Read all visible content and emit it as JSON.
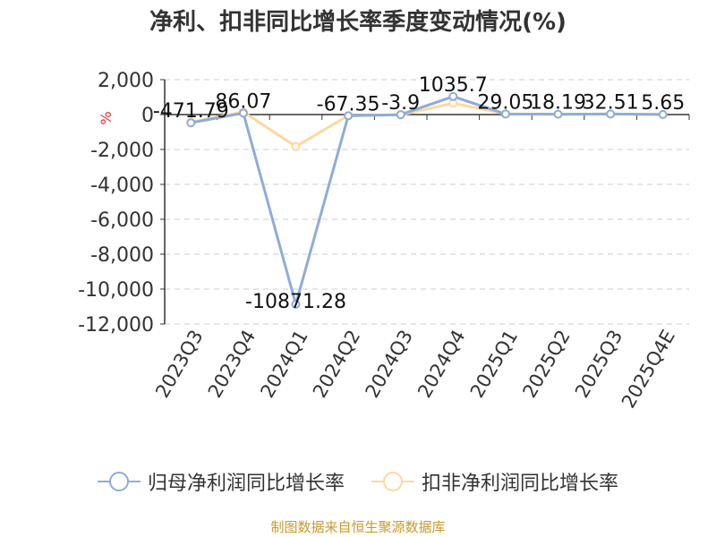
{
  "chart_data": {
    "type": "line",
    "title": "净利、扣非同比增长率季度变动情况(%)",
    "ylabel": "%",
    "ylim": [
      -12000,
      2000
    ],
    "yticks": [
      "2,000",
      "0",
      "-2,000",
      "-4,000",
      "-6,000",
      "-8,000",
      "-10,000",
      "-12,000"
    ],
    "categories": [
      "2023Q3",
      "2023Q4",
      "2024Q1",
      "2024Q2",
      "2024Q3",
      "2024Q4",
      "2025Q1",
      "2025Q2",
      "2025Q3",
      "2025Q4E"
    ],
    "grid": true,
    "legend_position": "bottom",
    "series": [
      {
        "name": "归母净利润同比增长率",
        "color": "#8eacd8",
        "values": [
          -471.79,
          86.07,
          -10871.28,
          -67.35,
          -3.9,
          1035.7,
          29.05,
          18.19,
          32.51,
          5.65
        ],
        "labels": [
          "-471.79",
          "86.07",
          "-10871.28",
          "-67.35",
          "-3.9",
          "1035.7",
          "29.05",
          "18.19",
          "32.51",
          "5.65"
        ]
      },
      {
        "name": "扣非净利润同比增长率",
        "color": "#fcd9a0",
        "values": [
          -420,
          150,
          -1830,
          -60,
          -20,
          650,
          40,
          20,
          30,
          5
        ]
      }
    ],
    "source": "制图数据来自恒生聚源数据库"
  }
}
